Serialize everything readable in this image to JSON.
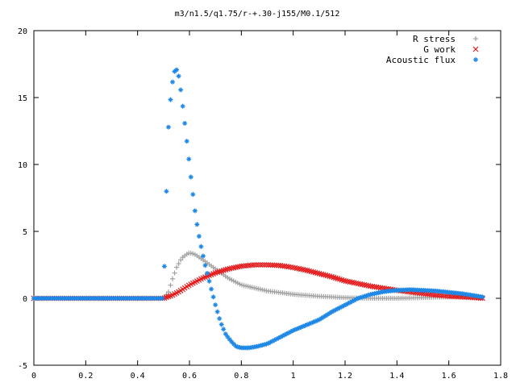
{
  "chart_data": {
    "type": "scatter",
    "title": "m3/n1.5/q1.75/r-+.30-j155/M0.1/512",
    "xlabel": "",
    "ylabel": "",
    "xlim": [
      0,
      1.8
    ],
    "ylim": [
      -5,
      20
    ],
    "xticks": [
      "0",
      "0.2",
      "0.4",
      "0.6",
      "0.8",
      "1",
      "1.2",
      "1.4",
      "1.6",
      "1.8"
    ],
    "yticks": [
      "-5",
      "0",
      "5",
      "10",
      "15",
      "20"
    ],
    "legend_position": "top-right",
    "grid": false,
    "series": [
      {
        "name": "R stress",
        "marker": "plus",
        "color": "#a0a0a0",
        "points": [
          [
            0.0,
            0.0
          ],
          [
            0.1,
            0.0
          ],
          [
            0.2,
            0.0
          ],
          [
            0.3,
            0.0
          ],
          [
            0.4,
            0.0
          ],
          [
            0.5,
            0.0
          ],
          [
            0.52,
            0.5
          ],
          [
            0.53,
            1.2
          ],
          [
            0.55,
            2.3
          ],
          [
            0.57,
            3.0
          ],
          [
            0.59,
            3.3
          ],
          [
            0.6,
            3.4
          ],
          [
            0.62,
            3.3
          ],
          [
            0.65,
            2.9
          ],
          [
            0.7,
            2.2
          ],
          [
            0.75,
            1.5
          ],
          [
            0.8,
            1.0
          ],
          [
            0.9,
            0.55
          ],
          [
            1.0,
            0.3
          ],
          [
            1.1,
            0.15
          ],
          [
            1.2,
            0.05
          ],
          [
            1.3,
            0.0
          ],
          [
            1.4,
            0.0
          ],
          [
            1.5,
            0.05
          ],
          [
            1.6,
            0.1
          ],
          [
            1.7,
            0.1
          ],
          [
            1.73,
            0.05
          ]
        ]
      },
      {
        "name": "G work",
        "marker": "cross",
        "color": "#e41a1c",
        "points": [
          [
            0.0,
            0.0
          ],
          [
            0.1,
            0.0
          ],
          [
            0.2,
            0.0
          ],
          [
            0.3,
            0.0
          ],
          [
            0.4,
            0.0
          ],
          [
            0.5,
            0.0
          ],
          [
            0.53,
            0.2
          ],
          [
            0.56,
            0.5
          ],
          [
            0.6,
            1.0
          ],
          [
            0.65,
            1.5
          ],
          [
            0.7,
            1.9
          ],
          [
            0.75,
            2.2
          ],
          [
            0.8,
            2.4
          ],
          [
            0.85,
            2.5
          ],
          [
            0.9,
            2.5
          ],
          [
            0.95,
            2.45
          ],
          [
            1.0,
            2.3
          ],
          [
            1.05,
            2.1
          ],
          [
            1.1,
            1.85
          ],
          [
            1.15,
            1.6
          ],
          [
            1.2,
            1.3
          ],
          [
            1.3,
            0.9
          ],
          [
            1.4,
            0.6
          ],
          [
            1.5,
            0.35
          ],
          [
            1.6,
            0.15
          ],
          [
            1.7,
            0.05
          ],
          [
            1.73,
            0.0
          ]
        ]
      },
      {
        "name": "Acoustic flux",
        "marker": "star",
        "color": "#1e88e5",
        "points": [
          [
            0.0,
            0.0
          ],
          [
            0.1,
            0.0
          ],
          [
            0.2,
            0.0
          ],
          [
            0.3,
            0.0
          ],
          [
            0.4,
            0.0
          ],
          [
            0.5,
            0.0
          ],
          [
            0.51,
            7.3
          ],
          [
            0.52,
            13.4
          ],
          [
            0.53,
            15.5
          ],
          [
            0.54,
            16.9
          ],
          [
            0.55,
            17.1
          ],
          [
            0.56,
            16.5
          ],
          [
            0.57,
            15.0
          ],
          [
            0.58,
            13.4
          ],
          [
            0.59,
            11.7
          ],
          [
            0.6,
            10.0
          ],
          [
            0.61,
            8.3
          ],
          [
            0.62,
            6.7
          ],
          [
            0.63,
            5.4
          ],
          [
            0.64,
            4.3
          ],
          [
            0.66,
            2.5
          ],
          [
            0.68,
            1.0
          ],
          [
            0.7,
            -0.5
          ],
          [
            0.72,
            -1.8
          ],
          [
            0.74,
            -2.7
          ],
          [
            0.76,
            -3.2
          ],
          [
            0.78,
            -3.6
          ],
          [
            0.8,
            -3.7
          ],
          [
            0.83,
            -3.7
          ],
          [
            0.86,
            -3.6
          ],
          [
            0.9,
            -3.4
          ],
          [
            0.95,
            -2.9
          ],
          [
            1.0,
            -2.4
          ],
          [
            1.05,
            -2.0
          ],
          [
            1.1,
            -1.6
          ],
          [
            1.15,
            -1.0
          ],
          [
            1.2,
            -0.5
          ],
          [
            1.25,
            0.0
          ],
          [
            1.3,
            0.3
          ],
          [
            1.35,
            0.5
          ],
          [
            1.4,
            0.6
          ],
          [
            1.45,
            0.65
          ],
          [
            1.5,
            0.6
          ],
          [
            1.55,
            0.55
          ],
          [
            1.6,
            0.45
          ],
          [
            1.65,
            0.35
          ],
          [
            1.7,
            0.2
          ],
          [
            1.73,
            0.1
          ]
        ]
      }
    ]
  }
}
